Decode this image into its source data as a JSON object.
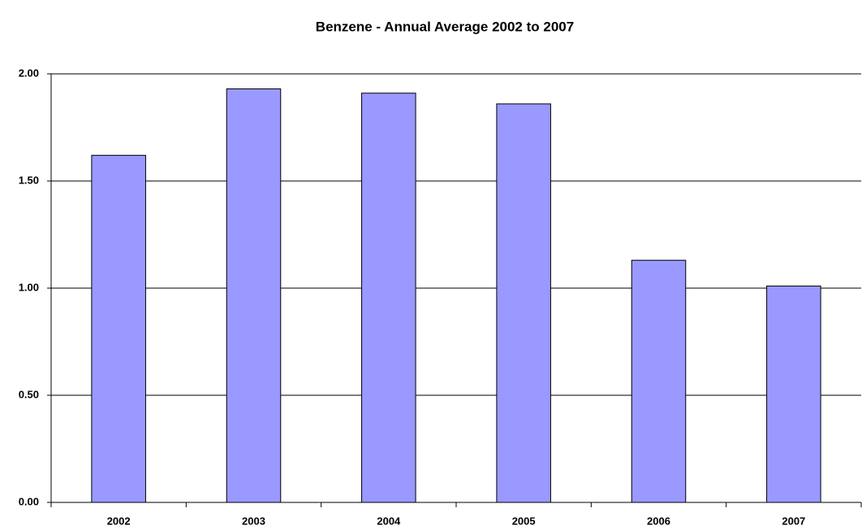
{
  "chart_data": {
    "type": "bar",
    "title": "Benzene - Annual Average 2002 to 2007",
    "categories": [
      "2002",
      "2003",
      "2004",
      "2005",
      "2006",
      "2007"
    ],
    "values": [
      1.62,
      1.93,
      1.91,
      1.86,
      1.13,
      1.01
    ],
    "color": "#9999ff",
    "ylim": [
      0,
      2
    ],
    "yticks": [
      {
        "value": 0,
        "label": "0.00"
      },
      {
        "value": 0.5,
        "label": "0.50"
      },
      {
        "value": 1,
        "label": "1.00"
      },
      {
        "value": 1.5,
        "label": "1.50"
      },
      {
        "value": 2,
        "label": "2.00"
      }
    ],
    "grid": true
  }
}
